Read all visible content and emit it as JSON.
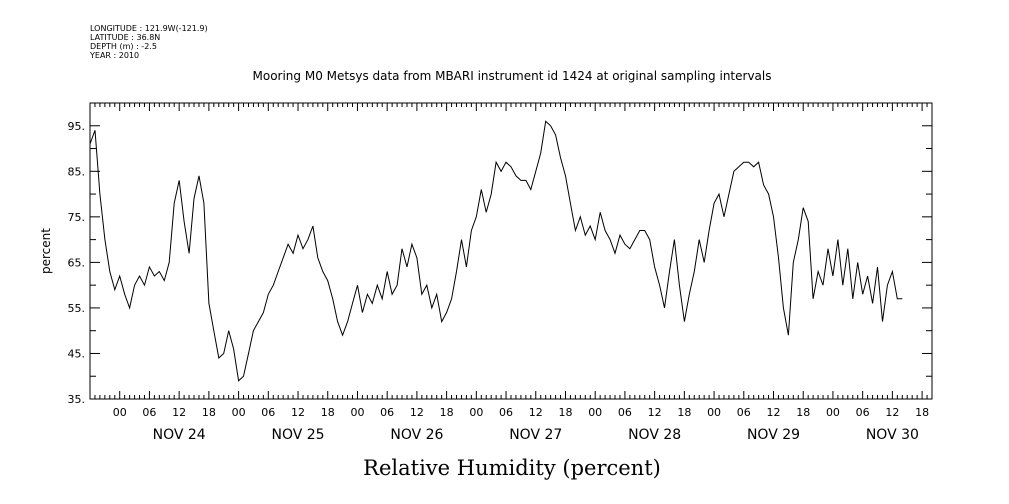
{
  "header": {
    "longitude": "LONGITUDE : 121.9W(-121.9)",
    "latitude": "LATITUDE : 36.8N",
    "depth": "DEPTH (m) : -2.5",
    "year": "YEAR : 2010"
  },
  "chart_data": {
    "type": "line",
    "title": "Mooring M0 Metsys data from MBARI instrument id 1424 at original sampling intervals",
    "xlabel": "Relative Humidity (percent)",
    "ylabel": "percent",
    "ylim": [
      35,
      100
    ],
    "yticks": [
      35,
      45,
      55,
      65,
      75,
      85,
      95
    ],
    "xlim": [
      "Nov 23 18:00",
      "Nov 30 20:00"
    ],
    "hour_tick_labels": [
      "00",
      "06",
      "12",
      "18",
      "00",
      "06",
      "12",
      "18",
      "00",
      "06",
      "12",
      "18",
      "00",
      "06",
      "12",
      "18",
      "00",
      "06",
      "12",
      "18",
      "00",
      "06",
      "12",
      "18",
      "00",
      "06",
      "12",
      "18"
    ],
    "day_labels": [
      "NOV 24",
      "NOV 25",
      "NOV 26",
      "NOV 27",
      "NOV 28",
      "NOV 29",
      "NOV 30"
    ],
    "grid": false,
    "series": [
      {
        "color": "#000000",
        "points": [
          [
            "Nov 23 18:00",
            91
          ],
          [
            "Nov 23 19:00",
            94
          ],
          [
            "Nov 23 20:00",
            80
          ],
          [
            "Nov 23 21:00",
            70
          ],
          [
            "Nov 23 22:00",
            63
          ],
          [
            "Nov 23 23:00",
            59
          ],
          [
            "Nov 24 00:00",
            62
          ],
          [
            "Nov 24 01:00",
            58
          ],
          [
            "Nov 24 02:00",
            55
          ],
          [
            "Nov 24 03:00",
            60
          ],
          [
            "Nov 24 04:00",
            62
          ],
          [
            "Nov 24 05:00",
            60
          ],
          [
            "Nov 24 06:00",
            64
          ],
          [
            "Nov 24 07:00",
            62
          ],
          [
            "Nov 24 08:00",
            63
          ],
          [
            "Nov 24 09:00",
            61
          ],
          [
            "Nov 24 10:00",
            65
          ],
          [
            "Nov 24 11:00",
            78
          ],
          [
            "Nov 24 12:00",
            83
          ],
          [
            "Nov 24 13:00",
            74
          ],
          [
            "Nov 24 14:00",
            67
          ],
          [
            "Nov 24 15:00",
            79
          ],
          [
            "Nov 24 16:00",
            84
          ],
          [
            "Nov 24 17:00",
            78
          ],
          [
            "Nov 24 18:00",
            56
          ],
          [
            "Nov 24 19:00",
            50
          ],
          [
            "Nov 24 20:00",
            44
          ],
          [
            "Nov 24 21:00",
            45
          ],
          [
            "Nov 24 22:00",
            50
          ],
          [
            "Nov 24 23:00",
            46
          ],
          [
            "Nov 25 00:00",
            39
          ],
          [
            "Nov 25 01:00",
            40
          ],
          [
            "Nov 25 02:00",
            45
          ],
          [
            "Nov 25 03:00",
            50
          ],
          [
            "Nov 25 04:00",
            52
          ],
          [
            "Nov 25 05:00",
            54
          ],
          [
            "Nov 25 06:00",
            58
          ],
          [
            "Nov 25 07:00",
            60
          ],
          [
            "Nov 25 08:00",
            63
          ],
          [
            "Nov 25 09:00",
            66
          ],
          [
            "Nov 25 10:00",
            69
          ],
          [
            "Nov 25 11:00",
            67
          ],
          [
            "Nov 25 12:00",
            71
          ],
          [
            "Nov 25 13:00",
            68
          ],
          [
            "Nov 25 14:00",
            70
          ],
          [
            "Nov 25 15:00",
            73
          ],
          [
            "Nov 25 16:00",
            66
          ],
          [
            "Nov 25 17:00",
            63
          ],
          [
            "Nov 25 18:00",
            61
          ],
          [
            "Nov 25 19:00",
            57
          ],
          [
            "Nov 25 20:00",
            52
          ],
          [
            "Nov 25 21:00",
            49
          ],
          [
            "Nov 25 22:00",
            52
          ],
          [
            "Nov 25 23:00",
            56
          ],
          [
            "Nov 26 00:00",
            60
          ],
          [
            "Nov 26 01:00",
            54
          ],
          [
            "Nov 26 02:00",
            58
          ],
          [
            "Nov 26 03:00",
            56
          ],
          [
            "Nov 26 04:00",
            60
          ],
          [
            "Nov 26 05:00",
            57
          ],
          [
            "Nov 26 06:00",
            63
          ],
          [
            "Nov 26 07:00",
            58
          ],
          [
            "Nov 26 08:00",
            60
          ],
          [
            "Nov 26 09:00",
            68
          ],
          [
            "Nov 26 10:00",
            64
          ],
          [
            "Nov 26 11:00",
            69
          ],
          [
            "Nov 26 12:00",
            66
          ],
          [
            "Nov 26 13:00",
            58
          ],
          [
            "Nov 26 14:00",
            60
          ],
          [
            "Nov 26 15:00",
            55
          ],
          [
            "Nov 26 16:00",
            58
          ],
          [
            "Nov 26 17:00",
            52
          ],
          [
            "Nov 26 18:00",
            54
          ],
          [
            "Nov 26 19:00",
            57
          ],
          [
            "Nov 26 20:00",
            63
          ],
          [
            "Nov 26 21:00",
            70
          ],
          [
            "Nov 26 22:00",
            64
          ],
          [
            "Nov 26 23:00",
            72
          ],
          [
            "Nov 27 00:00",
            75
          ],
          [
            "Nov 27 01:00",
            81
          ],
          [
            "Nov 27 02:00",
            76
          ],
          [
            "Nov 27 03:00",
            80
          ],
          [
            "Nov 27 04:00",
            87
          ],
          [
            "Nov 27 05:00",
            85
          ],
          [
            "Nov 27 06:00",
            87
          ],
          [
            "Nov 27 07:00",
            86
          ],
          [
            "Nov 27 08:00",
            84
          ],
          [
            "Nov 27 09:00",
            83
          ],
          [
            "Nov 27 10:00",
            83
          ],
          [
            "Nov 27 11:00",
            81
          ],
          [
            "Nov 27 12:00",
            85
          ],
          [
            "Nov 27 13:00",
            89
          ],
          [
            "Nov 27 14:00",
            96
          ],
          [
            "Nov 27 15:00",
            95
          ],
          [
            "Nov 27 16:00",
            93
          ],
          [
            "Nov 27 17:00",
            88
          ],
          [
            "Nov 27 18:00",
            84
          ],
          [
            "Nov 27 19:00",
            78
          ],
          [
            "Nov 27 20:00",
            72
          ],
          [
            "Nov 27 21:00",
            75
          ],
          [
            "Nov 27 22:00",
            71
          ],
          [
            "Nov 27 23:00",
            73
          ],
          [
            "Nov 28 00:00",
            70
          ],
          [
            "Nov 28 01:00",
            76
          ],
          [
            "Nov 28 02:00",
            72
          ],
          [
            "Nov 28 03:00",
            70
          ],
          [
            "Nov 28 04:00",
            67
          ],
          [
            "Nov 28 05:00",
            71
          ],
          [
            "Nov 28 06:00",
            69
          ],
          [
            "Nov 28 07:00",
            68
          ],
          [
            "Nov 28 08:00",
            70
          ],
          [
            "Nov 28 09:00",
            72
          ],
          [
            "Nov 28 10:00",
            72
          ],
          [
            "Nov 28 11:00",
            70
          ],
          [
            "Nov 28 12:00",
            64
          ],
          [
            "Nov 28 13:00",
            60
          ],
          [
            "Nov 28 14:00",
            55
          ],
          [
            "Nov 28 15:00",
            63
          ],
          [
            "Nov 28 16:00",
            70
          ],
          [
            "Nov 28 17:00",
            60
          ],
          [
            "Nov 28 18:00",
            52
          ],
          [
            "Nov 28 19:00",
            58
          ],
          [
            "Nov 28 20:00",
            63
          ],
          [
            "Nov 28 21:00",
            70
          ],
          [
            "Nov 28 22:00",
            65
          ],
          [
            "Nov 28 23:00",
            72
          ],
          [
            "Nov 29 00:00",
            78
          ],
          [
            "Nov 29 01:00",
            80
          ],
          [
            "Nov 29 02:00",
            75
          ],
          [
            "Nov 29 03:00",
            80
          ],
          [
            "Nov 29 04:00",
            85
          ],
          [
            "Nov 29 05:00",
            86
          ],
          [
            "Nov 29 06:00",
            87
          ],
          [
            "Nov 29 07:00",
            87
          ],
          [
            "Nov 29 08:00",
            86
          ],
          [
            "Nov 29 09:00",
            87
          ],
          [
            "Nov 29 10:00",
            82
          ],
          [
            "Nov 29 11:00",
            80
          ],
          [
            "Nov 29 12:00",
            75
          ],
          [
            "Nov 29 13:00",
            66
          ],
          [
            "Nov 29 14:00",
            55
          ],
          [
            "Nov 29 15:00",
            49
          ],
          [
            "Nov 29 16:00",
            65
          ],
          [
            "Nov 29 17:00",
            70
          ],
          [
            "Nov 29 18:00",
            77
          ],
          [
            "Nov 29 19:00",
            74
          ],
          [
            "Nov 29 20:00",
            57
          ],
          [
            "Nov 29 21:00",
            63
          ],
          [
            "Nov 29 22:00",
            60
          ],
          [
            "Nov 29 23:00",
            68
          ],
          [
            "Nov 30 00:00",
            62
          ],
          [
            "Nov 30 01:00",
            70
          ],
          [
            "Nov 30 02:00",
            60
          ],
          [
            "Nov 30 03:00",
            68
          ],
          [
            "Nov 30 04:00",
            57
          ],
          [
            "Nov 30 05:00",
            65
          ],
          [
            "Nov 30 06:00",
            58
          ],
          [
            "Nov 30 07:00",
            62
          ],
          [
            "Nov 30 08:00",
            56
          ],
          [
            "Nov 30 09:00",
            64
          ],
          [
            "Nov 30 10:00",
            52
          ],
          [
            "Nov 30 11:00",
            60
          ],
          [
            "Nov 30 12:00",
            63
          ],
          [
            "Nov 30 13:00",
            57
          ],
          [
            "Nov 30 14:00",
            57
          ]
        ]
      }
    ]
  }
}
